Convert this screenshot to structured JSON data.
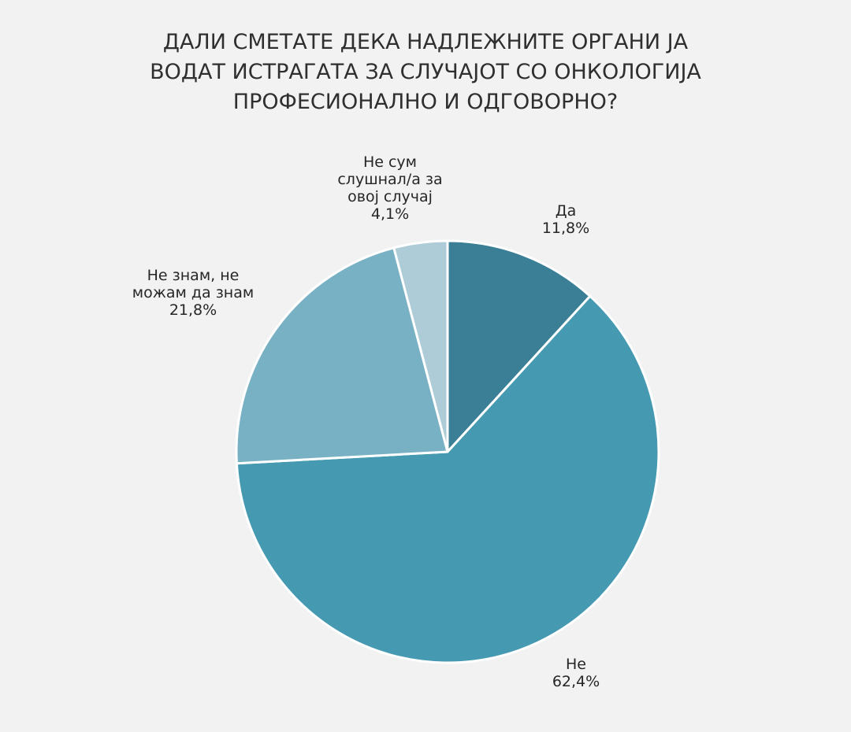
{
  "chart_data": {
    "type": "pie",
    "title_lines": [
      "ДАЛИ СМЕТАТЕ ДЕКА НАДЛЕЖНИТЕ ОРГАНИ ЈА",
      "ВОДАТ ИСТРАГАТА ЗА СЛУЧАЈОТ СО ОНКОЛОГИЈА",
      "ПРОФЕСИОНАЛНО И ОДГОВОРНО?"
    ],
    "start_angle_deg": 0,
    "direction": "clockwise",
    "slices": [
      {
        "name": "Да",
        "value": 11.8,
        "value_label": "11,8%",
        "color": "#3a7f96",
        "label_lines": [
          "Да"
        ]
      },
      {
        "name": "Не",
        "value": 62.4,
        "value_label": "62,4%",
        "color": "#459ab2",
        "label_lines": [
          "Не"
        ]
      },
      {
        "name": "Не знам, не можам да знам",
        "value": 21.8,
        "value_label": "21,8%",
        "color": "#78b1c4",
        "label_lines": [
          "Не знам, не",
          "можам да знам"
        ]
      },
      {
        "name": "Не сум слушнал/а за овој случај",
        "value": 4.1,
        "value_label": "4,1%",
        "color": "#aeccd8",
        "label_lines": [
          "Не сум",
          "слушнал/а за",
          "овој случај"
        ]
      }
    ],
    "legend": "none",
    "background_color": "#f2f2f2"
  }
}
